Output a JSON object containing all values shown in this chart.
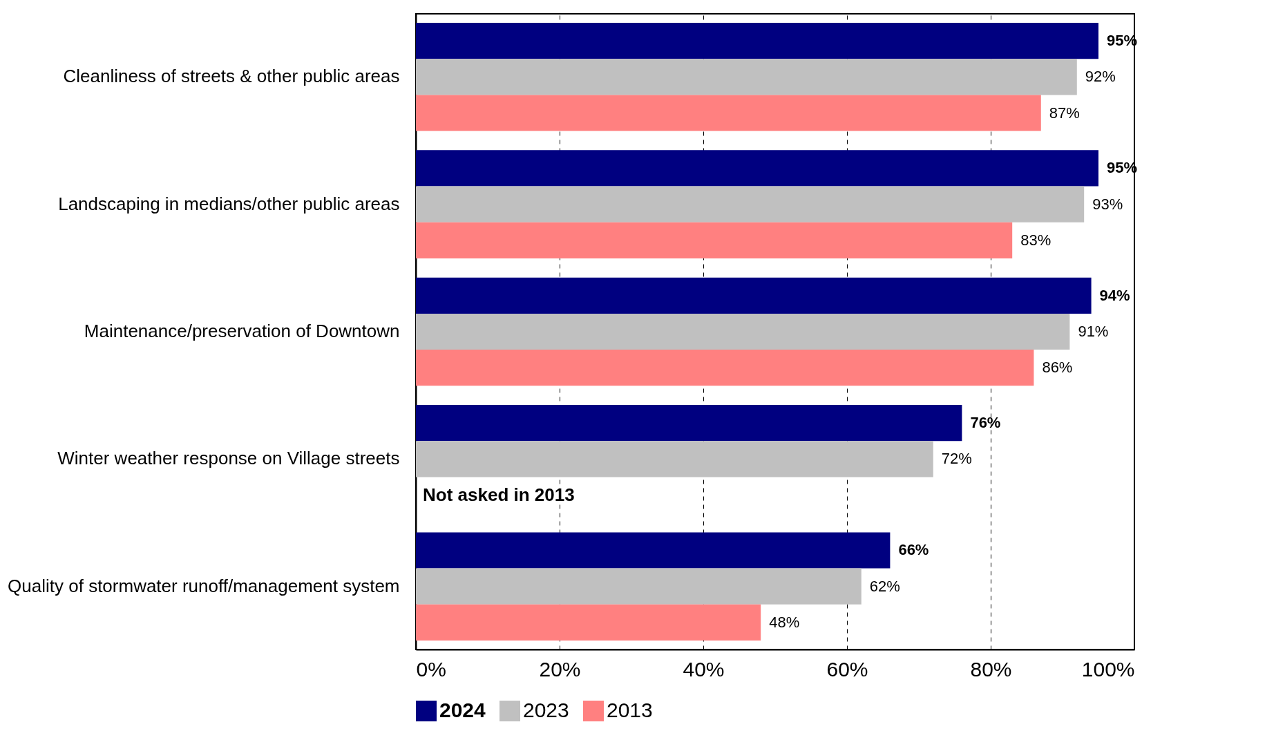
{
  "chart_data": {
    "type": "bar",
    "orientation": "horizontal",
    "categories": [
      "Cleanliness of streets & other public areas",
      "Landscaping in medians/other public areas",
      "Maintenance/preservation of Downtown",
      "Winter weather response on Village streets",
      "Quality of stormwater runoff/management system"
    ],
    "series": [
      {
        "name": "2024",
        "color": "#000080",
        "values": [
          95,
          95,
          94,
          76,
          66
        ],
        "value_labels": [
          "95%",
          "95%",
          "94%",
          "76%",
          "66%"
        ]
      },
      {
        "name": "2023",
        "color": "#c0c0c0",
        "values": [
          92,
          93,
          91,
          72,
          62
        ],
        "value_labels": [
          "92%",
          "93%",
          "91%",
          "72%",
          "62%"
        ]
      },
      {
        "name": "2013",
        "color": "#ff8080",
        "values": [
          87,
          83,
          86,
          null,
          48
        ],
        "value_labels": [
          "87%",
          "83%",
          "86%",
          null,
          "48%"
        ]
      }
    ],
    "xlim": [
      0,
      100
    ],
    "xticks": [
      {
        "value": 0,
        "label": "0%"
      },
      {
        "value": 20,
        "label": "20%"
      },
      {
        "value": 40,
        "label": "40%"
      },
      {
        "value": 60,
        "label": "60%"
      },
      {
        "value": 80,
        "label": "80%"
      },
      {
        "value": 100,
        "label": "100%"
      }
    ],
    "grid": "x",
    "legend": "bottom",
    "annotations": [
      {
        "text": "Not asked in 2013",
        "x": 0,
        "y": "Winter weather response on Village streets"
      }
    ]
  }
}
